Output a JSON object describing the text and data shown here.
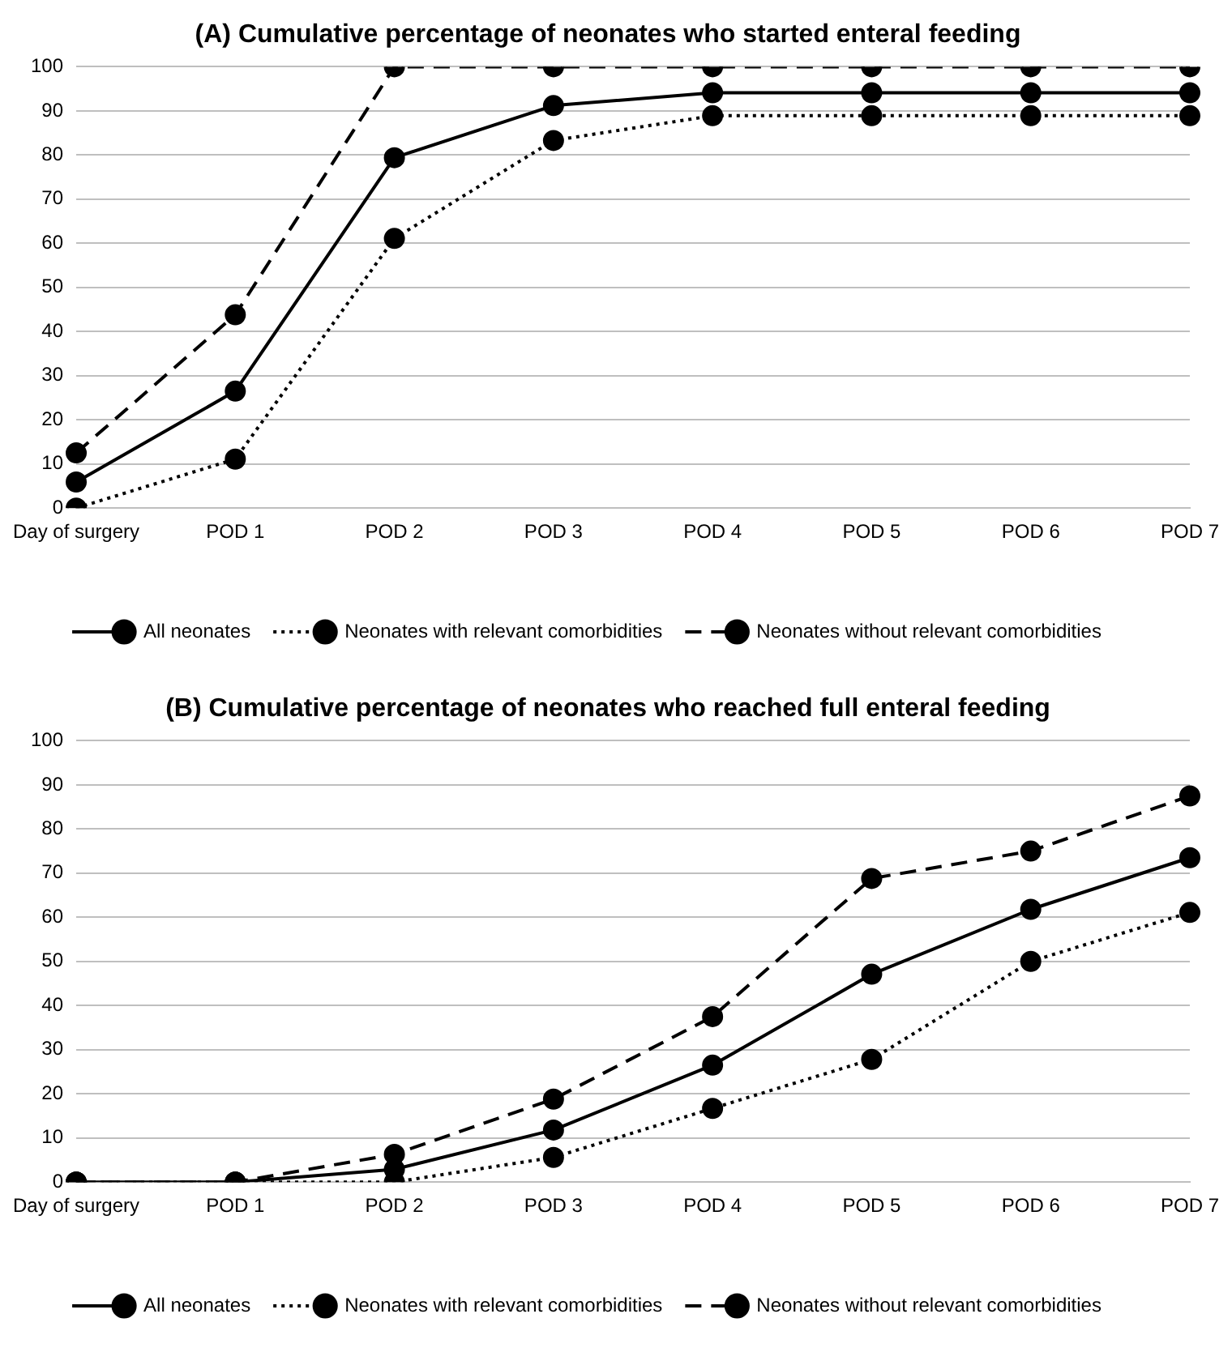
{
  "chart_data": [
    {
      "type": "line",
      "title": "(A) Cumulative percentage of neonates who started enteral feeding",
      "categories": [
        "Day of surgery",
        "POD 1",
        "POD 2",
        "POD 3",
        "POD 4",
        "POD 5",
        "POD 6",
        "POD 7"
      ],
      "series": [
        {
          "name": "All neonates",
          "color": "#000000",
          "line_style": "solid",
          "values": [
            5.9,
            26.5,
            79.4,
            91.2,
            94.1,
            94.1,
            94.1,
            94.1
          ]
        },
        {
          "name": "Neonates with relevant comorbidities",
          "color": "#000000",
          "line_style": "dotted",
          "values": [
            0,
            11.1,
            61.1,
            83.3,
            88.9,
            88.9,
            88.9,
            88.9
          ]
        },
        {
          "name": "Neonates without relevant comorbidities",
          "color": "#000000",
          "line_style": "dashed",
          "values": [
            12.5,
            43.8,
            100,
            100,
            100,
            100,
            100,
            100
          ]
        }
      ],
      "ylim": [
        0,
        100
      ],
      "yticks": [
        0,
        10,
        20,
        30,
        40,
        50,
        60,
        70,
        80,
        90,
        100
      ],
      "grid": "y",
      "legend": "bottom",
      "marker": "circle"
    },
    {
      "type": "line",
      "title": "(B) Cumulative percentage of neonates who reached full enteral feeding",
      "categories": [
        "Day of surgery",
        "POD 1",
        "POD 2",
        "POD 3",
        "POD 4",
        "POD 5",
        "POD 6",
        "POD 7"
      ],
      "series": [
        {
          "name": "All neonates",
          "color": "#000000",
          "line_style": "solid",
          "values": [
            0,
            0,
            2.9,
            11.8,
            26.5,
            47.1,
            61.8,
            73.5
          ]
        },
        {
          "name": "Neonates with relevant comorbidities",
          "color": "#000000",
          "line_style": "dotted",
          "values": [
            0,
            0,
            0,
            5.6,
            16.7,
            27.8,
            50,
            61.1
          ]
        },
        {
          "name": "Neonates without relevant comorbidities",
          "color": "#000000",
          "line_style": "dashed",
          "values": [
            0,
            0,
            6.3,
            18.8,
            37.5,
            68.8,
            75,
            87.5
          ]
        }
      ],
      "ylim": [
        0,
        100
      ],
      "yticks": [
        0,
        10,
        20,
        30,
        40,
        50,
        60,
        70,
        80,
        90,
        100
      ],
      "grid": "y",
      "legend": "bottom",
      "marker": "circle"
    }
  ]
}
